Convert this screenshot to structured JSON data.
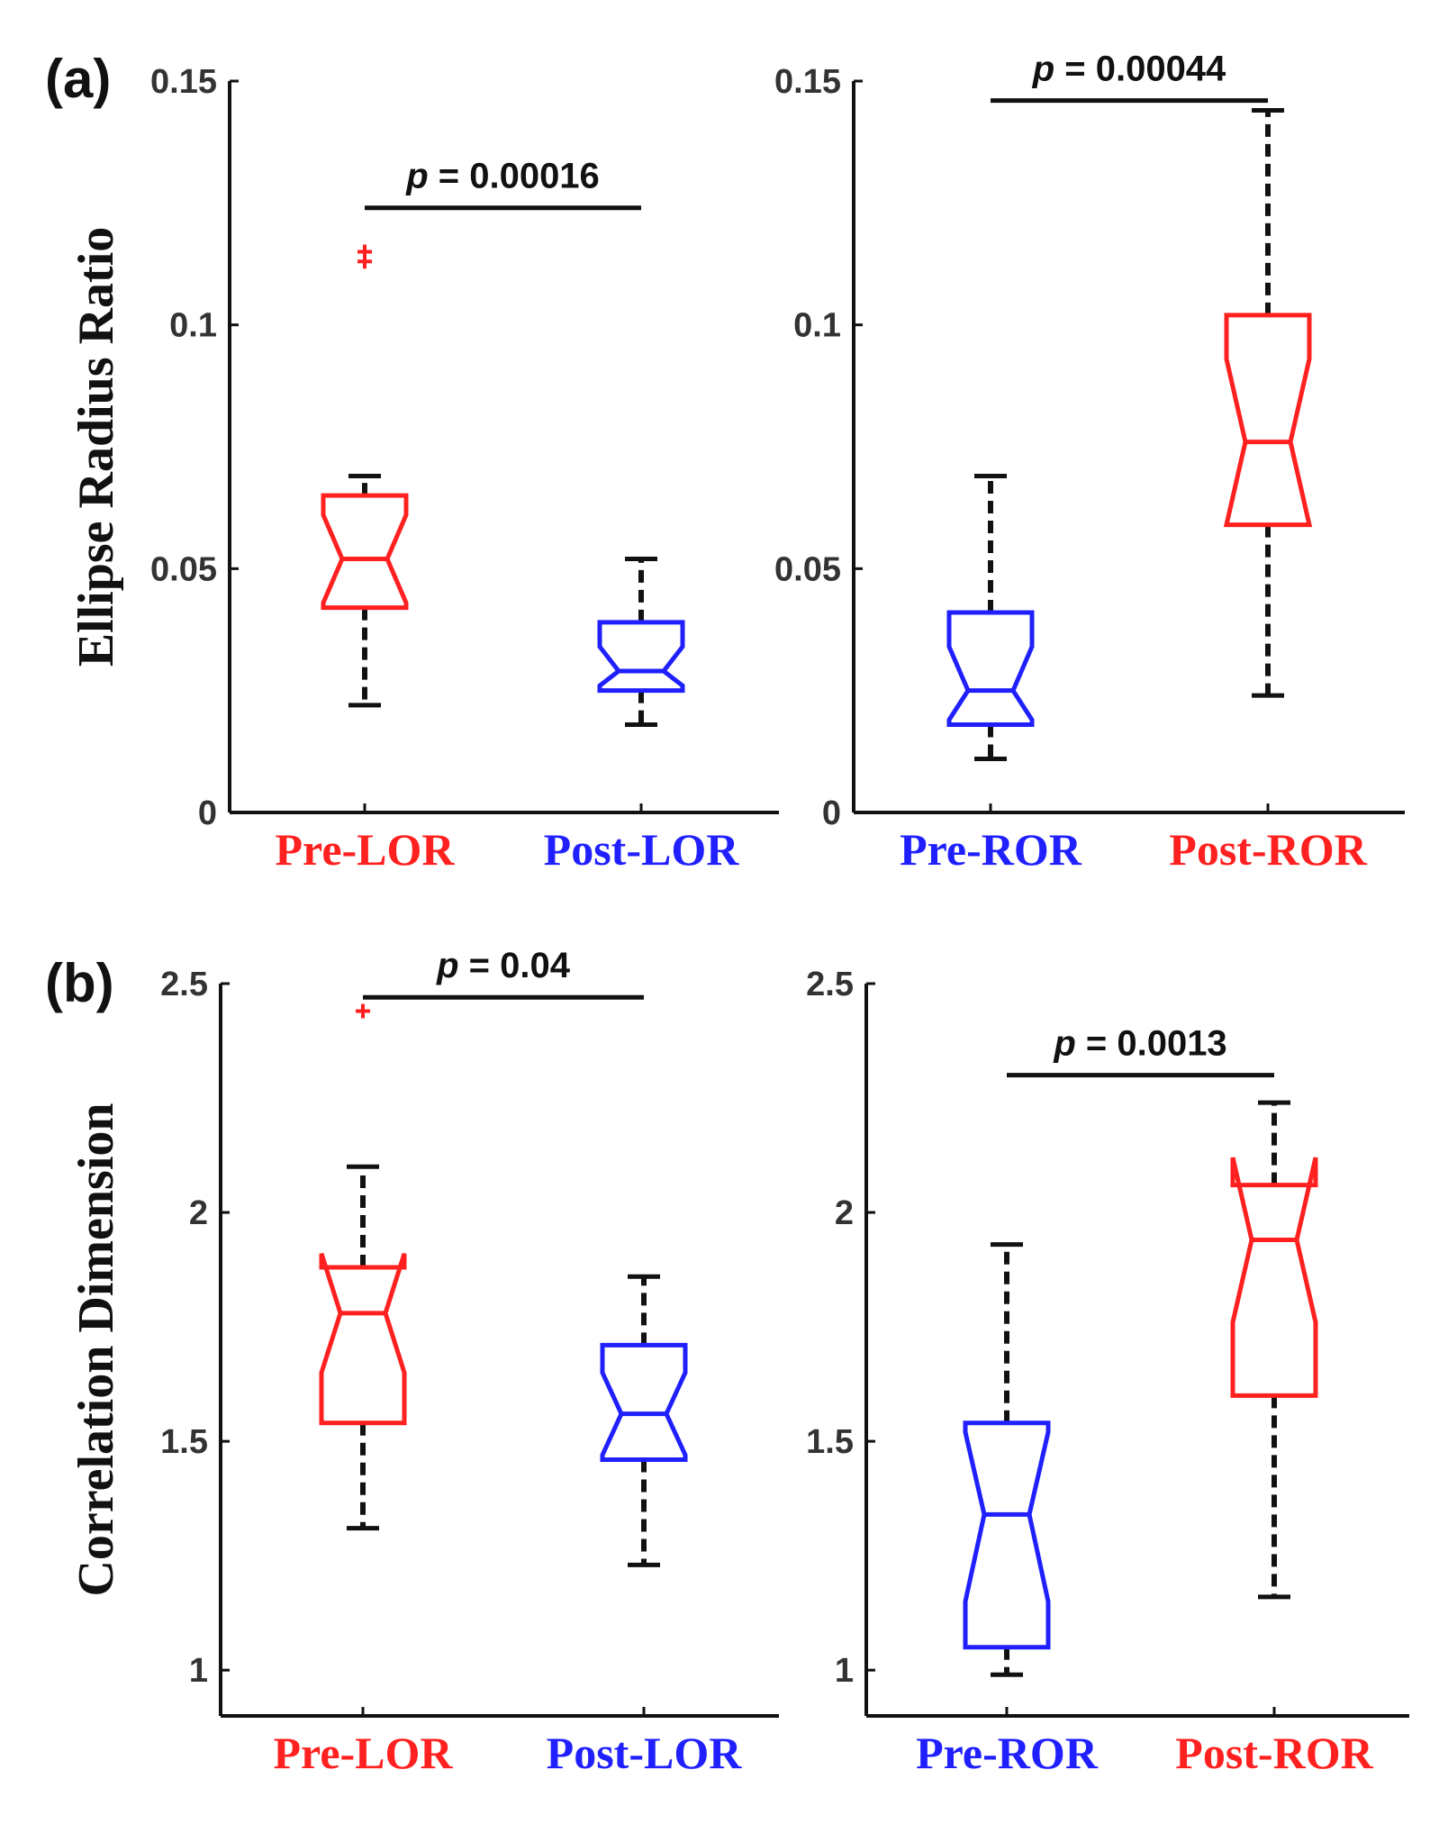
{
  "chart_data": [
    {
      "type": "boxplot",
      "panel_label": "(a)",
      "ylabel": "Ellipse Radius Ratio",
      "ylim": [
        0,
        0.15
      ],
      "yticks": [
        0,
        0.05,
        0.1,
        0.15
      ],
      "ytick_labels": [
        "0",
        "0.05",
        "0.1",
        "0.15"
      ],
      "categories": [
        "Pre-LOR",
        "Post-LOR"
      ],
      "category_colors": [
        "#ff2020",
        "#2020ff"
      ],
      "boxes": [
        {
          "q1": 0.042,
          "median": 0.052,
          "q3": 0.065,
          "notch_low": 0.043,
          "notch_high": 0.061,
          "whisker_low": 0.022,
          "whisker_high": 0.069,
          "outliers": [
            0.115,
            0.113
          ]
        },
        {
          "q1": 0.025,
          "median": 0.029,
          "q3": 0.039,
          "notch_low": 0.026,
          "notch_high": 0.034,
          "whisker_low": 0.018,
          "whisker_high": 0.052,
          "outliers": []
        }
      ],
      "significance": {
        "text": "p = 0.00016",
        "y": 0.124
      }
    },
    {
      "type": "boxplot",
      "ylim": [
        0,
        0.15
      ],
      "yticks": [
        0,
        0.05,
        0.1,
        0.15
      ],
      "ytick_labels": [
        "0",
        "0.05",
        "0.1",
        "0.15"
      ],
      "categories": [
        "Pre-ROR",
        "Post-ROR"
      ],
      "category_colors": [
        "#2020ff",
        "#ff2020"
      ],
      "boxes": [
        {
          "q1": 0.018,
          "median": 0.025,
          "q3": 0.041,
          "notch_low": 0.019,
          "notch_high": 0.034,
          "whisker_low": 0.011,
          "whisker_high": 0.069,
          "outliers": []
        },
        {
          "q1": 0.059,
          "median": 0.076,
          "q3": 0.102,
          "notch_low": 0.059,
          "notch_high": 0.093,
          "whisker_low": 0.024,
          "whisker_high": 0.144,
          "outliers": []
        }
      ],
      "significance": {
        "text": "p = 0.00044",
        "y": 0.146
      }
    },
    {
      "type": "boxplot",
      "panel_label": "(b)",
      "ylabel": "Correlation Dimension",
      "ylim": [
        0.9,
        2.5
      ],
      "yticks": [
        1,
        1.5,
        2,
        2.5
      ],
      "ytick_labels": [
        "1",
        "1.5",
        "2",
        "2.5"
      ],
      "categories": [
        "Pre-LOR",
        "Post-LOR"
      ],
      "category_colors": [
        "#ff2020",
        "#2020ff"
      ],
      "boxes": [
        {
          "q1": 1.54,
          "median": 1.78,
          "q3": 1.88,
          "notch_low": 1.65,
          "notch_high": 1.91,
          "whisker_low": 1.31,
          "whisker_high": 2.1,
          "outliers": [
            2.44
          ]
        },
        {
          "q1": 1.46,
          "median": 1.56,
          "q3": 1.71,
          "notch_low": 1.47,
          "notch_high": 1.65,
          "whisker_low": 1.23,
          "whisker_high": 1.86,
          "outliers": []
        }
      ],
      "significance": {
        "text": "p = 0.04",
        "y": 2.47
      }
    },
    {
      "type": "boxplot",
      "ylim": [
        0.9,
        2.5
      ],
      "yticks": [
        1,
        1.5,
        2,
        2.5
      ],
      "ytick_labels": [
        "1",
        "1.5",
        "2",
        "2.5"
      ],
      "categories": [
        "Pre-ROR",
        "Post-ROR"
      ],
      "category_colors": [
        "#2020ff",
        "#ff2020"
      ],
      "boxes": [
        {
          "q1": 1.05,
          "median": 1.34,
          "q3": 1.54,
          "notch_low": 1.15,
          "notch_high": 1.52,
          "whisker_low": 0.99,
          "whisker_high": 1.93,
          "outliers": []
        },
        {
          "q1": 1.6,
          "median": 1.94,
          "q3": 2.06,
          "notch_low": 1.76,
          "notch_high": 2.12,
          "whisker_low": 1.16,
          "whisker_high": 2.24,
          "outliers": []
        }
      ],
      "significance": {
        "text": "p = 0.0013",
        "y": 2.3
      }
    }
  ]
}
